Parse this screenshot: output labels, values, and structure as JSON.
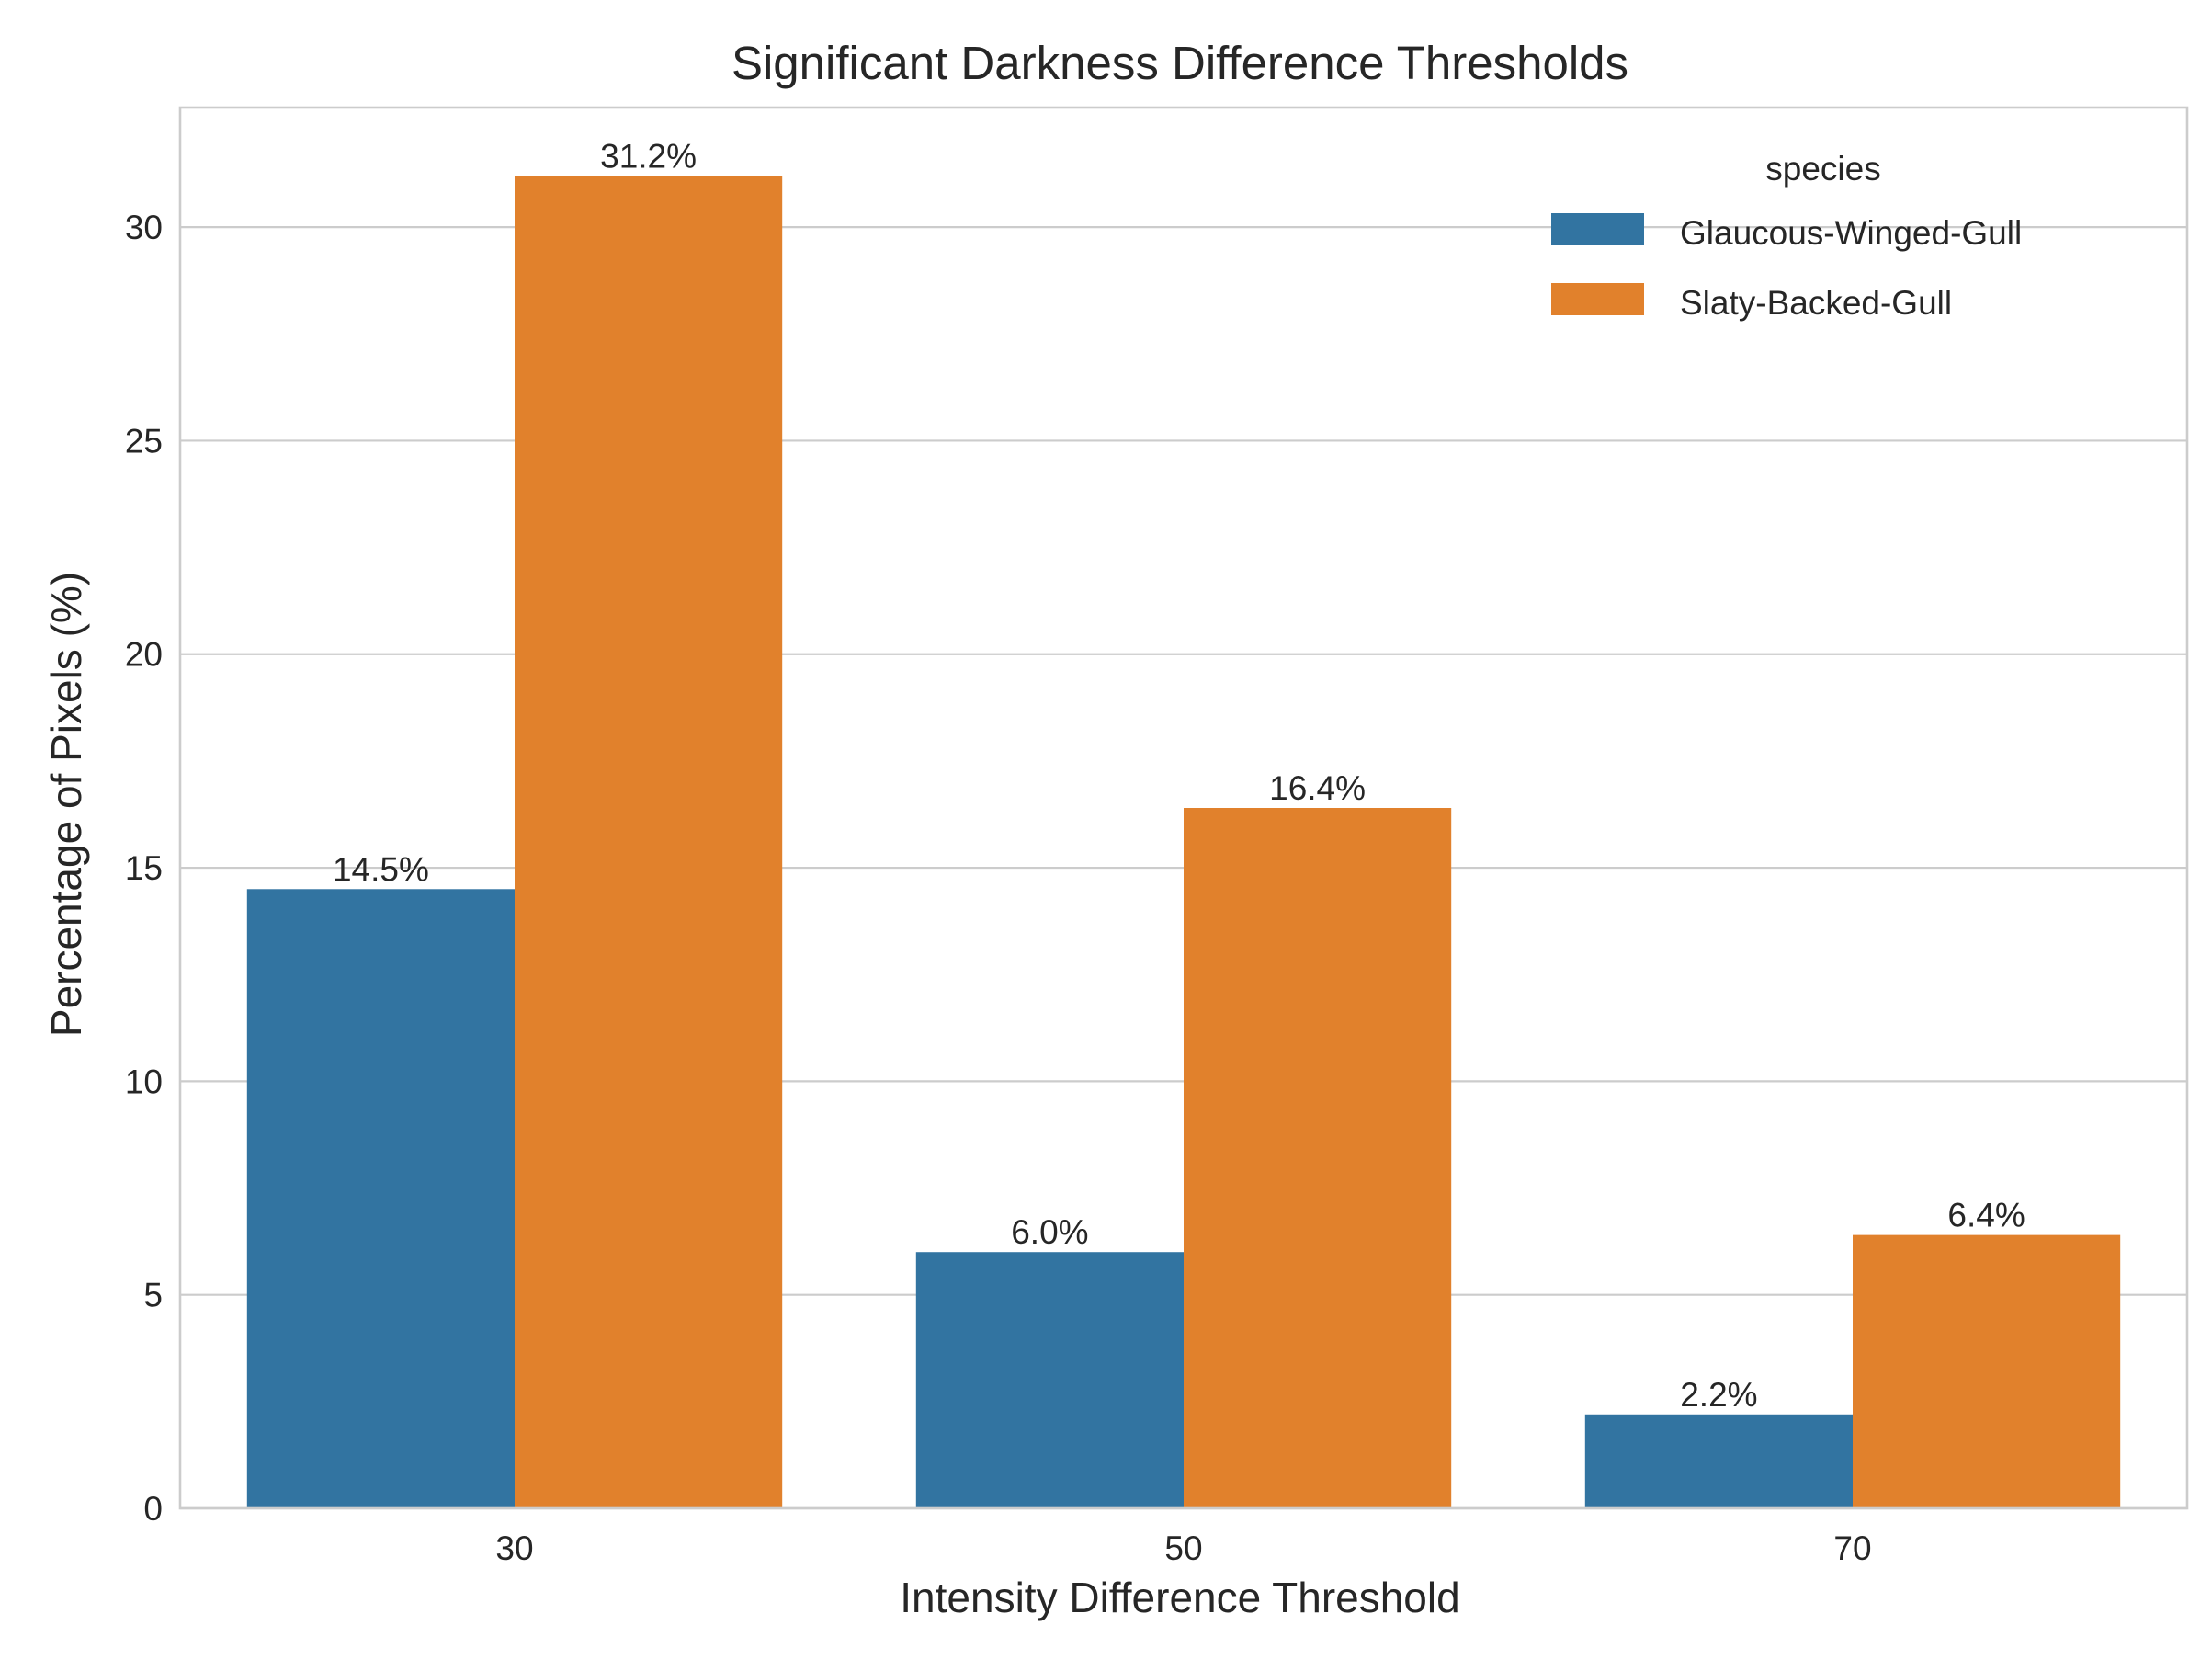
{
  "chart_data": {
    "type": "bar",
    "title": "Significant Darkness Difference Thresholds",
    "xlabel": "Intensity Difference Threshold",
    "ylabel": "Percentage of Pixels (%)",
    "categories": [
      "30",
      "50",
      "70"
    ],
    "ylim": [
      0,
      32.8
    ],
    "yticks": [
      0,
      5,
      10,
      15,
      20,
      25,
      30
    ],
    "grid": "horizontal",
    "legend": {
      "title": "species",
      "placement": "top-right"
    },
    "series": [
      {
        "name": "Glaucous-Winged-Gull",
        "color": "#3274a1",
        "values": [
          14.5,
          6.0,
          2.2
        ],
        "labels": [
          "14.5%",
          "6.0%",
          "2.2%"
        ]
      },
      {
        "name": "Slaty-Backed-Gull",
        "color": "#e1812c",
        "values": [
          31.2,
          16.4,
          6.4
        ],
        "labels": [
          "31.2%",
          "16.4%",
          "6.4%"
        ]
      }
    ]
  }
}
